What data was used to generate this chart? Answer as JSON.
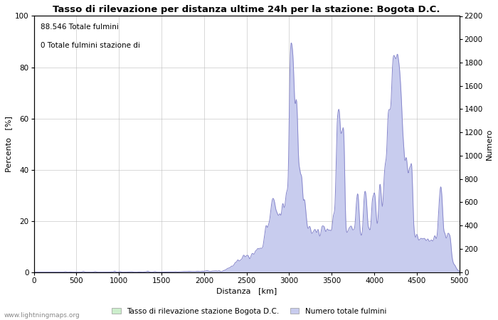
{
  "title": "Tasso di rilevazione per distanza ultime 24h per la stazione: Bogota D.C.",
  "xlabel": "Distanza   [km]",
  "ylabel_left": "Percento   [%]",
  "ylabel_right": "Numero",
  "annotation_line1": "88.546 Totale fulmini",
  "annotation_line2": "0 Totale fulmini stazione di",
  "xlim": [
    0,
    5000
  ],
  "ylim_left": [
    0,
    100
  ],
  "ylim_right": [
    0,
    2200
  ],
  "xticks": [
    0,
    500,
    1000,
    1500,
    2000,
    2500,
    3000,
    3500,
    4000,
    4500,
    5000
  ],
  "yticks_left": [
    0,
    20,
    40,
    60,
    80,
    100
  ],
  "yticks_right": [
    0,
    200,
    400,
    600,
    800,
    1000,
    1200,
    1400,
    1600,
    1800,
    2000,
    2200
  ],
  "legend_label_green": "Tasso di rilevazione stazione Bogota D.C.",
  "legend_label_blue": "Numero totale fulmini",
  "fill_color_blue": "#c8ccee",
  "line_color_blue": "#8888cc",
  "fill_color_green": "#cceecc",
  "line_color_green": "#88bb88",
  "background_color": "#ffffff",
  "grid_color": "#bbbbbb",
  "watermark": "www.lightningmaps.org",
  "title_fontsize": 9.5,
  "label_fontsize": 8,
  "tick_fontsize": 7.5,
  "annot_fontsize": 7.5
}
